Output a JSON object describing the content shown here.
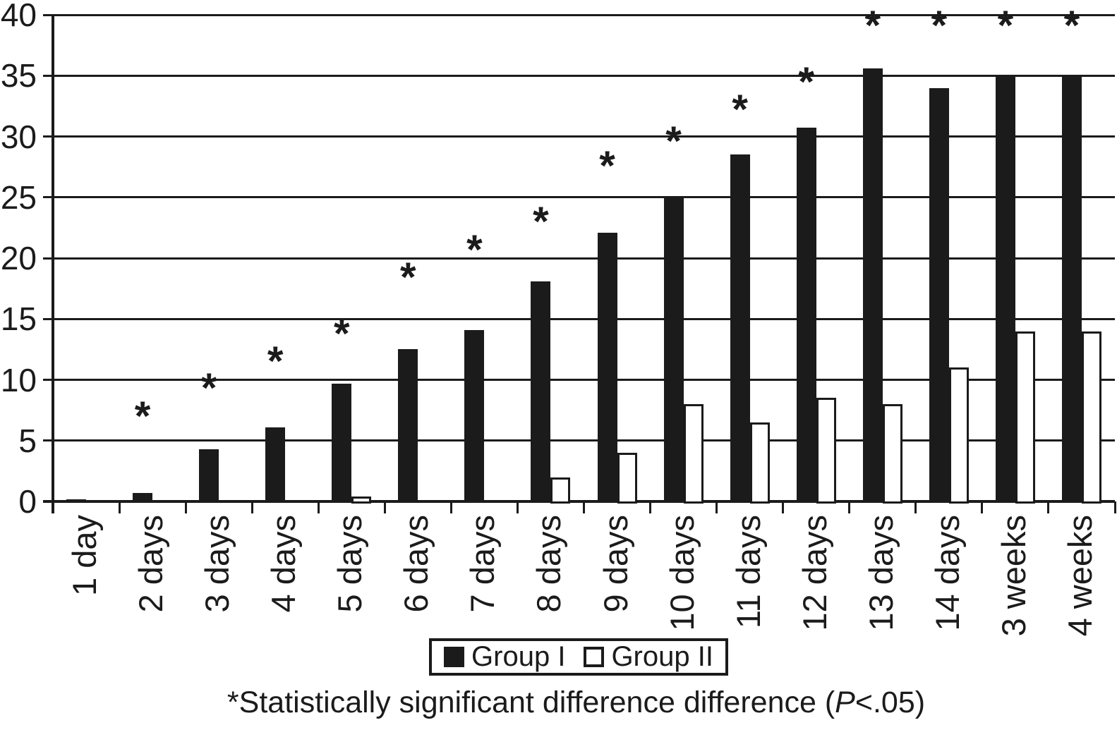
{
  "chart_data": {
    "type": "bar",
    "title": "",
    "xlabel": "",
    "ylabel": "",
    "categories": [
      "1 day",
      "2 days",
      "3 days",
      "4 days",
      "5 days",
      "6 days",
      "7 days",
      "8 days",
      "9 days",
      "10 days",
      "11 days",
      "12 days",
      "13 days",
      "14 days",
      "3 weeks",
      "4 weeks"
    ],
    "series": [
      {
        "name": "Group I",
        "fill": "#1b1b1b",
        "outline": "#1b1b1b",
        "values": [
          0.2,
          0.7,
          4.3,
          6.1,
          9.7,
          12.5,
          14.1,
          18.1,
          22.1,
          25.0,
          28.5,
          30.7,
          35.6,
          34.0,
          35.0,
          35.0
        ]
      },
      {
        "name": "Group II",
        "fill": "#ffffff",
        "outline": "#1b1b1b",
        "values": [
          0,
          0,
          0,
          0,
          0.4,
          0,
          0,
          2.0,
          4.0,
          8.0,
          6.5,
          8.5,
          8.0,
          11.0,
          14.0,
          14.0
        ]
      }
    ],
    "ylim": [
      0,
      40
    ],
    "yticks": [
      0,
      5,
      10,
      15,
      20,
      25,
      30,
      35,
      40
    ],
    "grid": true,
    "legend_position": "bottom-center",
    "significance": {
      "symbol": "*",
      "flags": [
        false,
        true,
        true,
        true,
        true,
        true,
        true,
        true,
        true,
        true,
        true,
        true,
        true,
        true,
        true,
        true
      ],
      "marker_y": [
        null,
        7.3,
        9.6,
        11.8,
        14.1,
        18.7,
        21.0,
        23.3,
        27.9,
        29.9,
        32.5,
        34.8,
        39.4,
        39.4,
        39.4,
        39.4
      ]
    }
  },
  "legend": {
    "items": [
      {
        "label": "Group I",
        "swatch": "black-filled-square"
      },
      {
        "label": "Group II",
        "swatch": "white-open-square"
      }
    ]
  },
  "footnote": {
    "prefix": "*Statistically significant difference difference (",
    "italic": "P",
    "suffix": "<.05)"
  },
  "colors": {
    "ink": "#1b1b1b",
    "background": "#ffffff"
  }
}
